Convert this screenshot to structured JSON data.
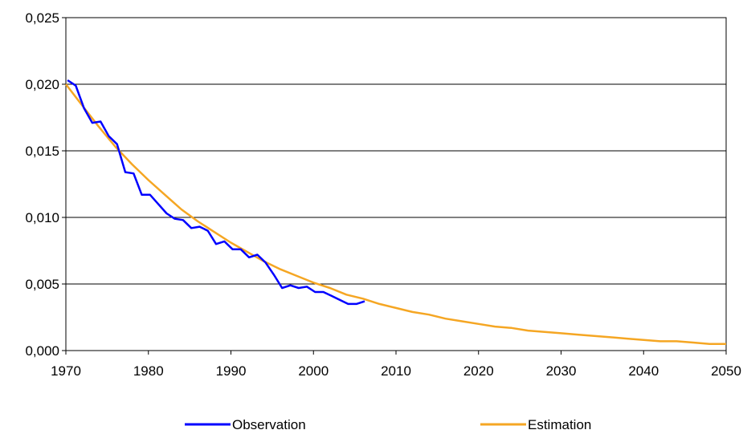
{
  "chart_data": {
    "type": "line",
    "title": "",
    "xlabel": "",
    "ylabel": "",
    "xlim": [
      1970,
      2050
    ],
    "ylim": [
      0,
      0.025
    ],
    "x_ticks": [
      1970,
      1980,
      1990,
      2000,
      2010,
      2020,
      2030,
      2040,
      2050
    ],
    "x_tick_labels": [
      "1970",
      "1980",
      "1990",
      "2000",
      "2010",
      "2020",
      "2030",
      "2040",
      "2050"
    ],
    "y_ticks": [
      0,
      0.005,
      0.01,
      0.015,
      0.02,
      0.025
    ],
    "y_tick_labels": [
      "0,000",
      "0,005",
      "0,010",
      "0,015",
      "0,020",
      "0,025"
    ],
    "grid": "horizontal",
    "legend_position": "bottom",
    "series": [
      {
        "name": "Observation",
        "color": "#0000ff",
        "x": [
          1970.2,
          1971.2,
          1972.2,
          1973.2,
          1974.2,
          1975.2,
          1976.2,
          1977.2,
          1978.2,
          1979.2,
          1980.2,
          1981.2,
          1982.2,
          1983.2,
          1984.2,
          1985.2,
          1986.2,
          1987.2,
          1988.2,
          1989.2,
          1990.2,
          1991.2,
          1992.2,
          1993.2,
          1994.2,
          1995.2,
          1996.2,
          1997.2,
          1998.2,
          1999.2,
          2000.2,
          2001.2,
          2002.2,
          2003.2,
          2004.2,
          2005.2,
          2006.2
        ],
        "y": [
          0.0203,
          0.0199,
          0.0182,
          0.0171,
          0.0172,
          0.0161,
          0.0155,
          0.0134,
          0.0133,
          0.0117,
          0.0117,
          0.011,
          0.0103,
          0.0099,
          0.0098,
          0.0092,
          0.0093,
          0.009,
          0.008,
          0.0082,
          0.0076,
          0.0076,
          0.007,
          0.0072,
          0.0066,
          0.0057,
          0.0047,
          0.0049,
          0.0047,
          0.0048,
          0.0044,
          0.0044,
          0.0041,
          0.0038,
          0.0035,
          0.0035,
          0.0037
        ]
      },
      {
        "name": "Estimation",
        "color": "#f5a623",
        "x": [
          1970,
          1972,
          1974,
          1976,
          1978,
          1980,
          1982,
          1984,
          1986,
          1988,
          1990,
          1992,
          1994,
          1996,
          1998,
          2000,
          2002,
          2004,
          2006,
          2008,
          2010,
          2012,
          2014,
          2016,
          2018,
          2020,
          2022,
          2024,
          2026,
          2028,
          2030,
          2032,
          2034,
          2036,
          2038,
          2040,
          2042,
          2044,
          2046,
          2048,
          2050
        ],
        "y": [
          0.02,
          0.0184,
          0.0168,
          0.0153,
          0.014,
          0.0128,
          0.0117,
          0.0106,
          0.0097,
          0.0089,
          0.0081,
          0.0074,
          0.0067,
          0.0061,
          0.0056,
          0.0051,
          0.0047,
          0.0042,
          0.0039,
          0.0035,
          0.0032,
          0.0029,
          0.0027,
          0.0024,
          0.0022,
          0.002,
          0.0018,
          0.0017,
          0.0015,
          0.0014,
          0.0013,
          0.0012,
          0.0011,
          0.001,
          0.0009,
          0.0008,
          0.0007,
          0.0007,
          0.0006,
          0.0005,
          0.0005
        ]
      }
    ]
  }
}
